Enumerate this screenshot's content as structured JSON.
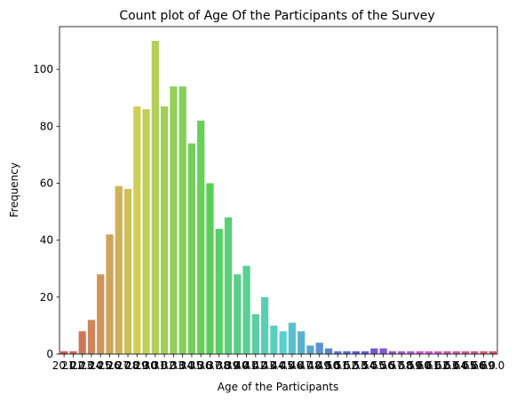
{
  "chart_data": {
    "type": "bar",
    "title": "Count plot of Age Of the Participants of the Survey",
    "xlabel": "Age of the Participants",
    "ylabel": "Frequency",
    "ylim": [
      0,
      115
    ],
    "yticks": [
      0,
      20,
      40,
      60,
      80,
      100
    ],
    "grid": false,
    "legend": "none",
    "categories": [
      "20.0",
      "21.0",
      "22.0",
      "23.0",
      "24.0",
      "25.0",
      "26.0",
      "27.0",
      "28.0",
      "29.0",
      "30.0",
      "31.0",
      "32.0",
      "33.0",
      "34.0",
      "35.0",
      "36.0",
      "37.0",
      "38.0",
      "39.0",
      "40.0",
      "41.0",
      "42.0",
      "43.0",
      "44.0",
      "45.0",
      "46.0",
      "47.0",
      "48.0",
      "49.0",
      "50.0",
      "51.0",
      "52.0",
      "53.0",
      "54.0",
      "55.0",
      "56.0",
      "57.0",
      "58.0",
      "59.0",
      "60.0",
      "61.0",
      "62.0",
      "63.0",
      "64.0",
      "65.0",
      "66.0",
      "69.0"
    ],
    "values": [
      1,
      1,
      8,
      12,
      28,
      42,
      59,
      58,
      87,
      86,
      110,
      87,
      94,
      94,
      74,
      82,
      60,
      44,
      48,
      28,
      31,
      14,
      20,
      10,
      8,
      11,
      8,
      3,
      4,
      2,
      1,
      1,
      1,
      1,
      2,
      2,
      1,
      1,
      1,
      1,
      1,
      1,
      1,
      1,
      1,
      1,
      1,
      1
    ]
  }
}
